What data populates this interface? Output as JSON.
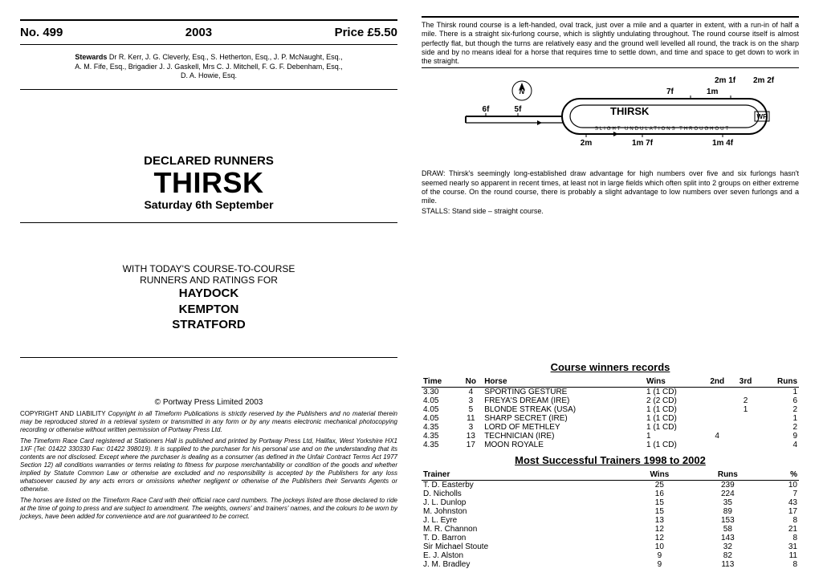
{
  "header": {
    "no": "No. 499",
    "year": "2003",
    "price": "Price £5.50"
  },
  "stewards": {
    "label": "Stewards",
    "text1": "Dr R. Kerr, J. G. Cleverly, Esq., S. Hetherton, Esq., J. P. McNaught, Esq.,",
    "text2": "A. M. Fife, Esq., Brigadier J. J. Gaskell, Mrs C. J. Mitchell, F. G. F. Debenham, Esq.,",
    "text3": "D. A. Howie, Esq."
  },
  "declared": {
    "label": "DECLARED RUNNERS",
    "course": "THIRSK",
    "date": "Saturday 6th September"
  },
  "ctc": {
    "line1": "WITH TODAY'S COURSE-TO-COURSE",
    "line2": "RUNNERS AND RATINGS FOR",
    "venues": [
      "HAYDOCK",
      "KEMPTON",
      "STRATFORD"
    ]
  },
  "copyright": "© Portway Press Limited 2003",
  "legal": {
    "p1_label": "COPYRIGHT AND LIABILITY",
    "p1": "Copyright in all Timeform Publications is strictly reserved by the Publishers and no material therein may be reproduced stored in a retrieval system or transmitted in any form or by any means electronic mechanical photocopying recording or otherwise without written permission of Portway Press Ltd.",
    "p2": "The Timeform Race Card registered at Stationers Hall is published and printed by Portway Press Ltd, Halifax, West Yorkshire HX1 1XF (Tel: 01422 330330 Fax: 01422 398019). It is supplied to the purchaser for his personal use and on the understanding that its contents are not disclosed. Except where the purchaser is dealing as a consumer (as defined in the Unfair Contract Terms Act 1977 Section 12) all conditions warranties or terms relating to fitness for purpose merchantability or condition of the goods and whether implied by Statute Common Law or otherwise are excluded and no responsibility is accepted by the Publishers for any loss whatsoever caused by any acts errors or omissions whether negligent or otherwise of the Publishers their Servants Agents or otherwise.",
    "p3": "The horses are listed on the Timeform Race Card with their official race card numbers. The jockeys listed are those declared to ride at the time of going to press and are subject to amendment. The weights, owners' and trainers' names, and the colours to be worn by jockeys, have been added for convenience and are not guaranteed to be correct."
  },
  "course_desc": "The Thirsk round course is a left-handed, oval track, just over a mile and a quarter in extent, with a run-in of half a mile. There is a straight six-furlong course, which is slightly undulating throughout. The round course itself is almost perfectly flat, but though the turns are relatively easy and the ground well levelled all round, the track is on the sharp side and by no means ideal for a horse that requires time to settle down, and time and space to get down to work in the straight.",
  "track_labels": {
    "name": "THIRSK",
    "top_right": [
      "2m 1f",
      "2m 2f"
    ],
    "inside": [
      "7f",
      "1m"
    ],
    "left_marks": [
      "6f",
      "5f"
    ],
    "wp": "WP",
    "undulations": "SLIGHT UNDULATIONS THROUGHOUT",
    "bottom": [
      "2m",
      "1m 7f",
      "1m 4f"
    ]
  },
  "draw": "DRAW: Thirsk's seemingly long-established draw advantage for high numbers over five and six furlongs hasn't seemed nearly so apparent in recent times, at least not in large fields which often split into 2 groups on either extreme of the course. On the round course, there is probably a slight advantage to low numbers over seven furlongs and a mile.",
  "stalls": "STALLS: Stand side – straight course.",
  "cwr": {
    "title": "Course winners records",
    "cols": [
      "Time",
      "No",
      "Horse",
      "Wins",
      "2nd",
      "3rd",
      "Runs"
    ],
    "rows": [
      [
        "3.30",
        "4",
        "SPORTING GESTURE",
        "1 (1 CD)",
        "",
        "",
        "1"
      ],
      [
        "4.05",
        "3",
        "FREYA'S DREAM (IRE)",
        "2 (2 CD)",
        "",
        "2",
        "6"
      ],
      [
        "4.05",
        "5",
        "BLONDE STREAK (USA)",
        "1 (1 CD)",
        "",
        "1",
        "2"
      ],
      [
        "4.05",
        "11",
        "SHARP SECRET (IRE)",
        "1 (1 CD)",
        "",
        "",
        "1"
      ],
      [
        "4.35",
        "3",
        "LORD OF METHLEY",
        "1 (1 CD)",
        "",
        "",
        "2"
      ],
      [
        "4.35",
        "13",
        "TECHNICIAN (IRE)",
        "1",
        "4",
        "",
        "9"
      ],
      [
        "4.35",
        "17",
        "MOON ROYALE",
        "1 (1 CD)",
        "",
        "",
        "4"
      ]
    ]
  },
  "mst": {
    "title": "Most Successful Trainers 1998 to 2002",
    "cols": [
      "Trainer",
      "Wins",
      "Runs",
      "%"
    ],
    "rows": [
      [
        "T. D. Easterby",
        "25",
        "239",
        "10"
      ],
      [
        "D. Nicholls",
        "16",
        "224",
        "7"
      ],
      [
        "J. L. Dunlop",
        "15",
        "35",
        "43"
      ],
      [
        "M. Johnston",
        "15",
        "89",
        "17"
      ],
      [
        "J. L. Eyre",
        "13",
        "153",
        "8"
      ],
      [
        "M. R. Channon",
        "12",
        "58",
        "21"
      ],
      [
        "T. D. Barron",
        "12",
        "143",
        "8"
      ],
      [
        "Sir Michael Stoute",
        "10",
        "32",
        "31"
      ],
      [
        "E. J. Alston",
        "9",
        "82",
        "11"
      ],
      [
        "J. M. Bradley",
        "9",
        "113",
        "8"
      ]
    ]
  },
  "style": {
    "background_color": "#ffffff",
    "text_color": "#000000",
    "rule_color": "#000000"
  }
}
